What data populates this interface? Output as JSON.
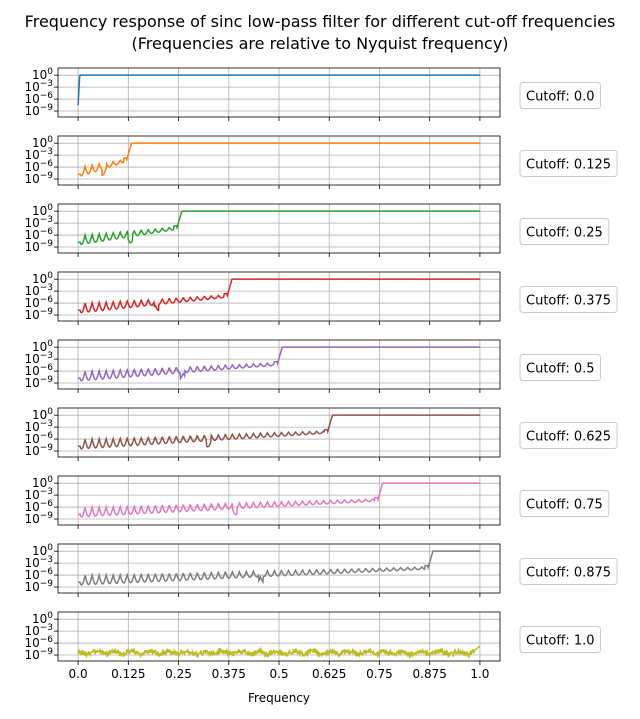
{
  "chart_data": {
    "type": "line",
    "title": "Frequency response of sinc low-pass filter for different cut-off frequencies",
    "subtitle": "(Frequencies are relative to Nyquist frequency)",
    "xlabel": "Frequency",
    "ylabel": "",
    "xlim": [
      -0.05,
      1.05
    ],
    "ylim_log10": [
      -10.5,
      1.8
    ],
    "yscale": "log",
    "grid": true,
    "legend_placement": "right of each subplot",
    "x_ticks": [
      0.0,
      0.125,
      0.25,
      0.375,
      0.5,
      0.625,
      0.75,
      0.875,
      1.0
    ],
    "x_tick_labels": [
      "0.0",
      "0.125",
      "0.25",
      "0.375",
      "0.5",
      "0.625",
      "0.75",
      "0.875",
      "1.0"
    ],
    "y_ticks_log10": [
      0,
      -3,
      -6,
      -9
    ],
    "y_tick_labels": [
      "10",
      "10",
      "10",
      "10"
    ],
    "y_tick_exponents": [
      "0",
      "−3",
      "−6",
      "−9"
    ],
    "passband_level": 1,
    "series": [
      {
        "name": "Cutoff: 0.0",
        "cutoff": 0.0,
        "color": "#1f77b4"
      },
      {
        "name": "Cutoff: 0.125",
        "cutoff": 0.125,
        "color": "#ff7f0e"
      },
      {
        "name": "Cutoff: 0.25",
        "cutoff": 0.25,
        "color": "#2ca02c"
      },
      {
        "name": "Cutoff: 0.375",
        "cutoff": 0.375,
        "color": "#d62728"
      },
      {
        "name": "Cutoff: 0.5",
        "cutoff": 0.5,
        "color": "#9467bd"
      },
      {
        "name": "Cutoff: 0.625",
        "cutoff": 0.625,
        "color": "#8c564b"
      },
      {
        "name": "Cutoff: 0.75",
        "cutoff": 0.75,
        "color": "#e377c2"
      },
      {
        "name": "Cutoff: 0.875",
        "cutoff": 0.875,
        "color": "#7f7f7f"
      },
      {
        "name": "Cutoff: 1.0",
        "cutoff": 1.0,
        "color": "#bcbd22"
      }
    ]
  }
}
